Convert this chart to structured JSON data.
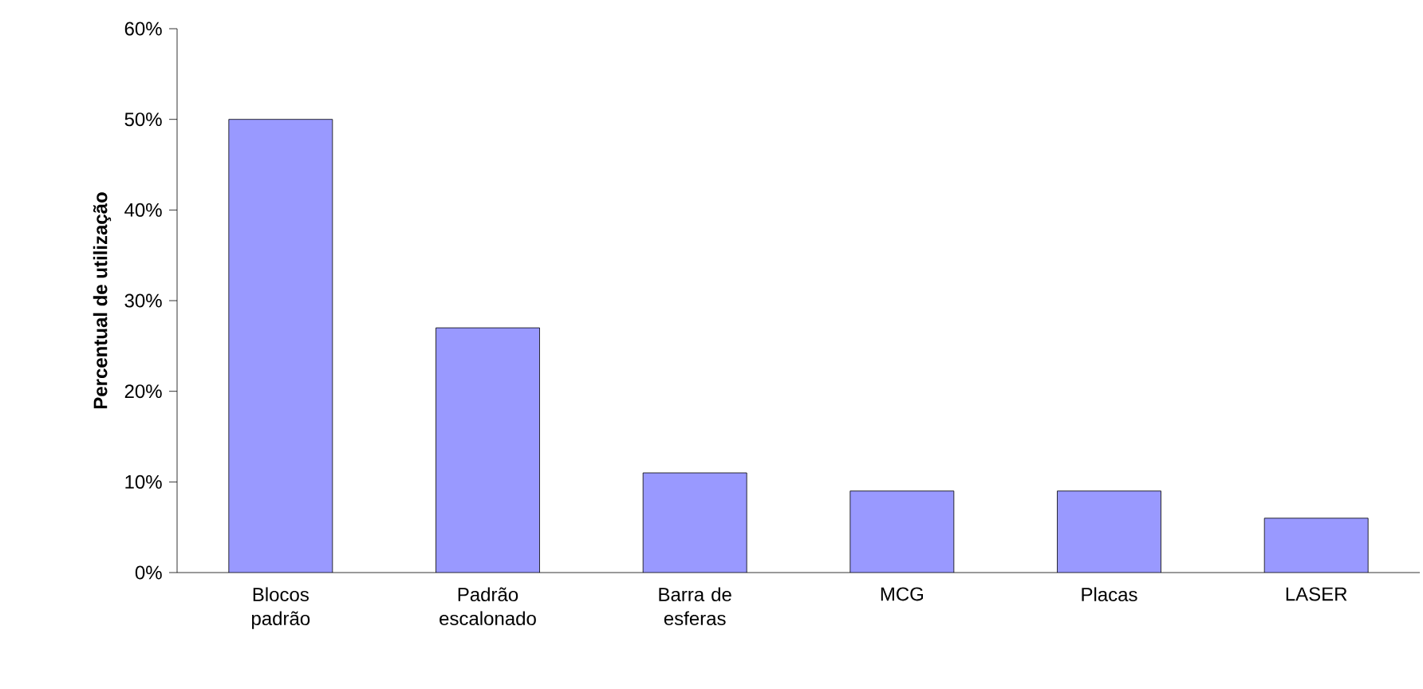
{
  "chart_data": {
    "type": "bar",
    "ylabel": "Percentual de utilização",
    "categories": [
      "Blocos padrão",
      "Padrão escalonado",
      "Barra de esferas",
      "MCG",
      "Placas",
      "LASER"
    ],
    "values": [
      50,
      27,
      11,
      9,
      9,
      6
    ],
    "color": "#9999ff",
    "ylim": [
      0,
      60
    ],
    "yticks": [
      {
        "value": 0,
        "label": "0%"
      },
      {
        "value": 10,
        "label": "10%"
      },
      {
        "value": 20,
        "label": "20%"
      },
      {
        "value": 30,
        "label": "30%"
      },
      {
        "value": 40,
        "label": "40%"
      },
      {
        "value": 50,
        "label": "50%"
      },
      {
        "value": 60,
        "label": "60%"
      }
    ],
    "grid": false
  }
}
